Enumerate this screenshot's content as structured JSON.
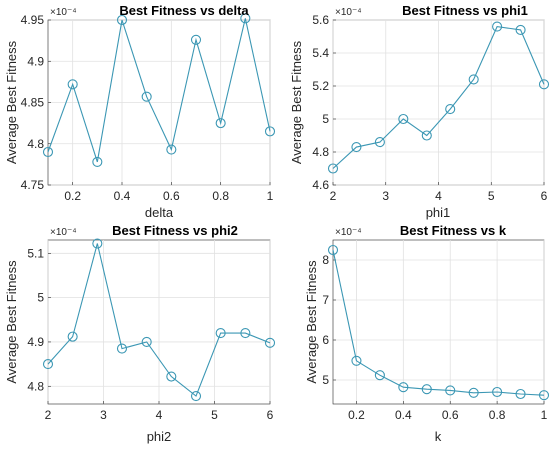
{
  "chart_data": [
    {
      "type": "line",
      "title": "Best Fitness vs delta",
      "xlabel": "delta",
      "ylabel": "Average Best Fitness",
      "exponent_label": "×10⁻⁴",
      "xlim": [
        0.1,
        1
      ],
      "ylim": [
        4.75,
        4.95
      ],
      "xticks": [
        0.2,
        0.4,
        0.6,
        0.8,
        1
      ],
      "xtick_labels": [
        "0.2",
        "0.4",
        "0.6",
        "0.8",
        "1"
      ],
      "yticks": [
        4.75,
        4.8,
        4.85,
        4.9,
        4.95
      ],
      "ytick_labels": [
        "4.75",
        "4.8",
        "4.85",
        "4.9",
        "4.95"
      ],
      "grid": true,
      "color": "#3b97b4",
      "x": [
        0.1,
        0.2,
        0.3,
        0.4,
        0.5,
        0.6,
        0.7,
        0.8,
        0.9,
        1.0
      ],
      "y": [
        4.79,
        4.872,
        4.778,
        4.95,
        4.857,
        4.793,
        4.926,
        4.825,
        4.952,
        4.815
      ]
    },
    {
      "type": "line",
      "title": "Best Fitness vs phi1",
      "xlabel": "phi1",
      "ylabel": "Average Best Fitness",
      "exponent_label": "×10⁻⁴",
      "xlim": [
        2,
        6
      ],
      "ylim": [
        4.6,
        5.6
      ],
      "xticks": [
        2,
        3,
        4,
        5,
        6
      ],
      "xtick_labels": [
        "2",
        "3",
        "4",
        "5",
        "6"
      ],
      "yticks": [
        4.6,
        4.8,
        5.0,
        5.2,
        5.4,
        5.6
      ],
      "ytick_labels": [
        "4.6",
        "4.8",
        "5",
        "5.2",
        "5.4",
        "5.6"
      ],
      "grid": true,
      "color": "#3b97b4",
      "x": [
        2.0,
        2.444,
        2.889,
        3.333,
        3.778,
        4.222,
        4.667,
        5.111,
        5.556,
        6.0
      ],
      "y": [
        4.7,
        4.83,
        4.86,
        5.0,
        4.9,
        5.06,
        5.24,
        5.56,
        5.54,
        5.21
      ]
    },
    {
      "type": "line",
      "title": "Best Fitness vs phi2",
      "xlabel": "phi2",
      "ylabel": "Average Best Fitness",
      "exponent_label": "×10⁻⁴",
      "xlim": [
        2,
        6
      ],
      "ylim": [
        4.76,
        5.13
      ],
      "xticks": [
        2,
        3,
        4,
        5,
        6
      ],
      "xtick_labels": [
        "2",
        "3",
        "4",
        "5",
        "6"
      ],
      "yticks": [
        4.8,
        4.9,
        5.0,
        5.1
      ],
      "ytick_labels": [
        "4.8",
        "4.9",
        "5",
        "5.1"
      ],
      "grid": true,
      "color": "#3b97b4",
      "x": [
        2.0,
        2.444,
        2.889,
        3.333,
        3.778,
        4.222,
        4.667,
        5.111,
        5.556,
        6.0
      ],
      "y": [
        4.85,
        4.912,
        5.122,
        4.885,
        4.9,
        4.822,
        4.778,
        4.92,
        4.92,
        4.898
      ]
    },
    {
      "type": "line",
      "title": "Best Fitness vs k",
      "xlabel": "k",
      "ylabel": "Average Best Fitness",
      "exponent_label": "×10⁻⁴",
      "xlim": [
        0.1,
        1
      ],
      "ylim": [
        4.4,
        8.5
      ],
      "xticks": [
        0.2,
        0.4,
        0.6,
        0.8,
        1
      ],
      "xtick_labels": [
        "0.2",
        "0.4",
        "0.6",
        "0.8",
        "1"
      ],
      "yticks": [
        5,
        6,
        7,
        8
      ],
      "ytick_labels": [
        "5",
        "6",
        "7",
        "8"
      ],
      "grid": true,
      "color": "#3b97b4",
      "x": [
        0.1,
        0.2,
        0.3,
        0.4,
        0.5,
        0.6,
        0.7,
        0.8,
        0.9,
        1.0
      ],
      "y": [
        8.25,
        5.48,
        5.12,
        4.82,
        4.77,
        4.74,
        4.68,
        4.7,
        4.65,
        4.62
      ]
    }
  ]
}
